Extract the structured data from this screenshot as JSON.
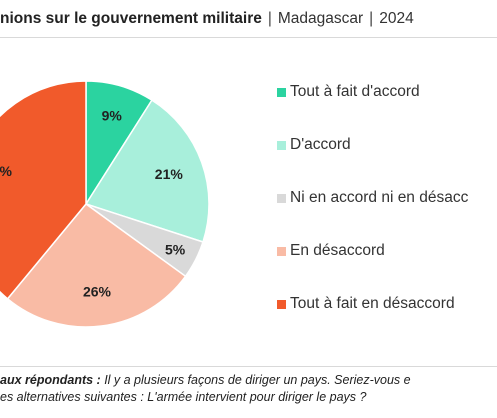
{
  "header": {
    "title_bold": "nions sur le gouvernement militaire",
    "separator": "|",
    "country": "Madagascar",
    "separator2": "|",
    "year": "2024"
  },
  "chart_data": {
    "type": "pie",
    "categories": [
      "Tout à fait d'accord",
      "D'accord",
      "Ni en accord ni en désaccord",
      "En désaccord",
      "Tout à fait en désaccord"
    ],
    "values": [
      9,
      21,
      5,
      26,
      39
    ],
    "labels": [
      "9%",
      "21%",
      "5%",
      "26%",
      "%"
    ],
    "colors": [
      "#2bd3a0",
      "#a8efdb",
      "#d9d9d9",
      "#f9bba5",
      "#f15a2b"
    ],
    "legend_position": "right"
  },
  "legend": {
    "items": [
      {
        "label": "Tout à fait d'accord"
      },
      {
        "label": "D'accord"
      },
      {
        "label": "Ni en accord ni en désacc"
      },
      {
        "label": "En désaccord"
      },
      {
        "label": "Tout à fait en désaccord"
      }
    ]
  },
  "footer": {
    "question_label": "aux répondants :",
    "question_line1": " Il y a plusieurs façons de diriger un pays. Seriez-vous e",
    "question_line2": "es alternatives suivantes : L'armée intervient pour diriger le pays ?"
  }
}
